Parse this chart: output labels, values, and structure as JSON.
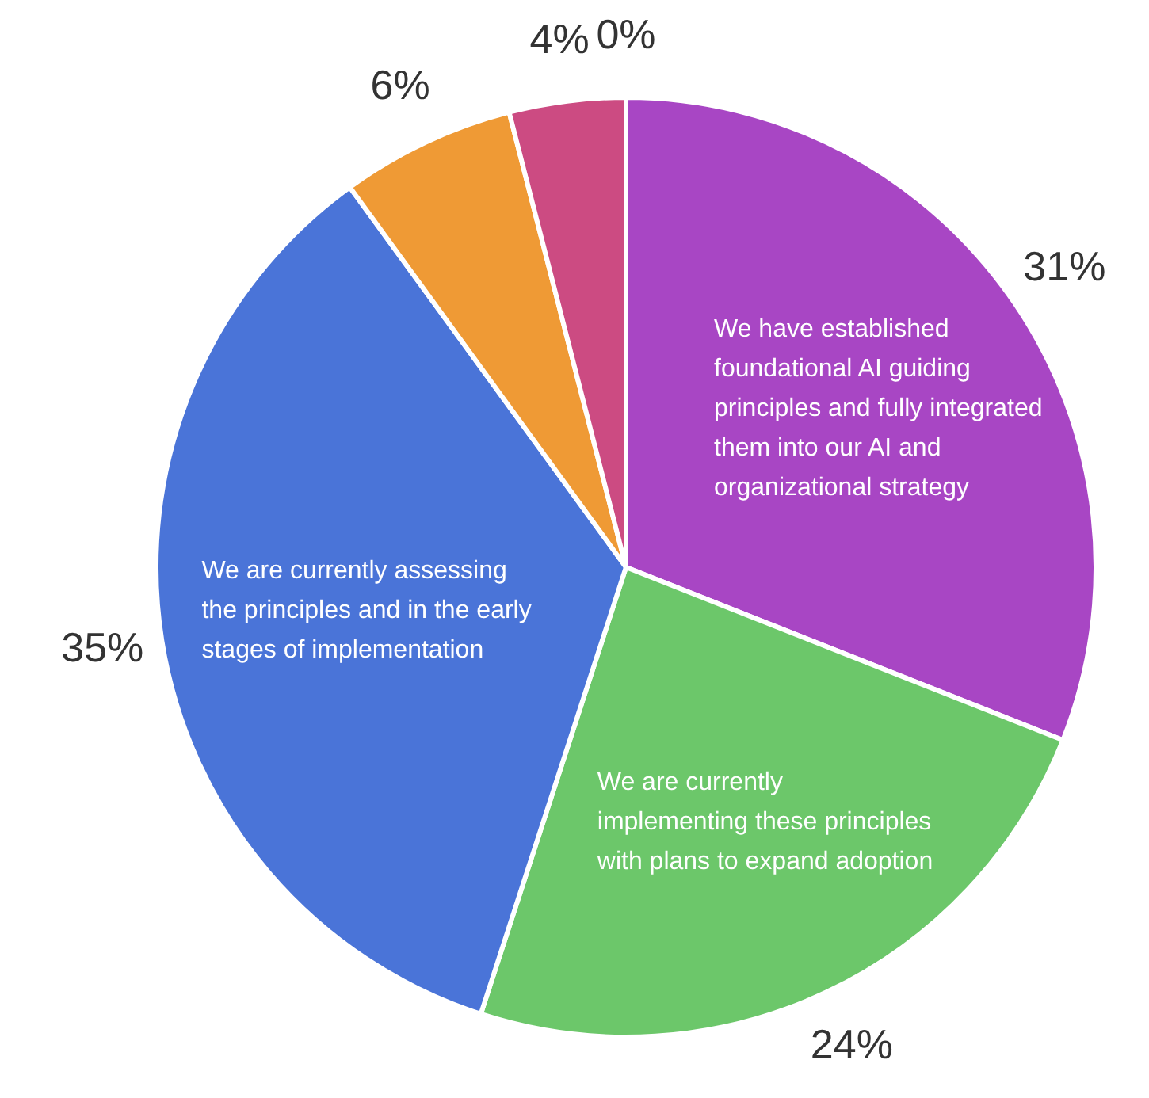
{
  "chart_data": {
    "type": "pie",
    "categories": [
      "We have established foundational AI guiding principles and fully integrated them into our AI and organizational strategy",
      "We are currently implementing these principles with plans to expand adoption",
      "We are currently assessing the principles and in the early stages of implementation",
      null,
      null,
      null
    ],
    "values": [
      31,
      24,
      35,
      6,
      4,
      0
    ],
    "colors": [
      "#a846c4",
      "#6cc76a",
      "#4a74d8",
      "#ef9a35",
      "#cc4b82",
      "#9e9e9e"
    ],
    "value_labels": [
      "31%",
      "24%",
      "35%",
      "6%",
      "4%",
      "0%"
    ],
    "legend": false
  }
}
